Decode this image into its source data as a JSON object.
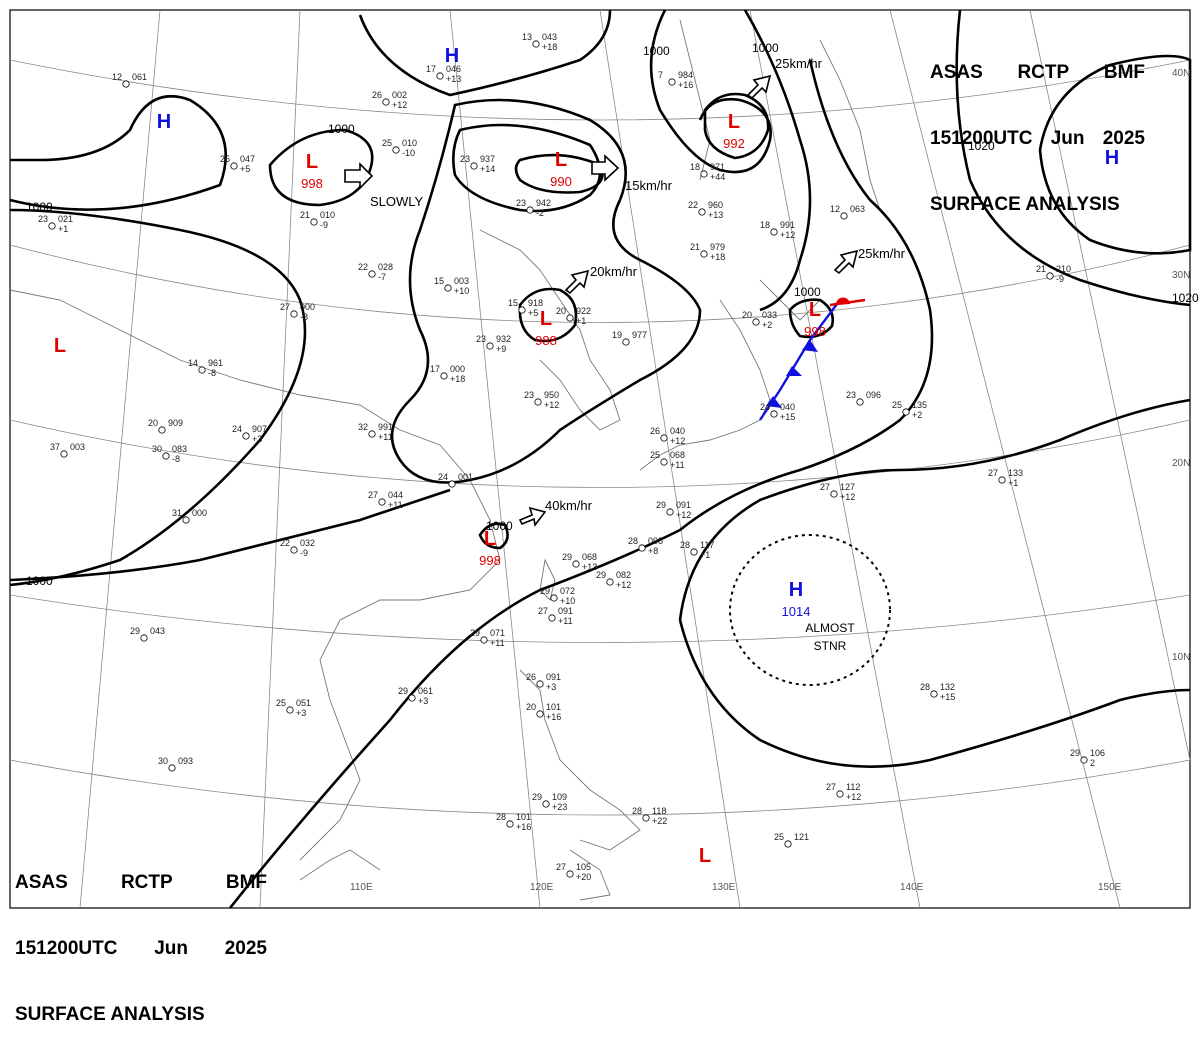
{
  "header": {
    "line1": [
      "ASAS",
      "RCTP",
      "BMF"
    ],
    "line2": [
      "151200UTC",
      "Jun",
      "2025"
    ],
    "line3": "SURFACE ANALYSIS"
  },
  "colors": {
    "high": "#1010e0",
    "low": "#e00000",
    "isobar": "#000000",
    "land": "#888888",
    "grid": "#888888"
  },
  "lon_labels": [
    {
      "text": "110E"
    },
    {
      "text": "120E"
    },
    {
      "text": "130E"
    },
    {
      "text": "140E"
    },
    {
      "text": "150E"
    }
  ],
  "lat_labels": [
    {
      "text": "40N"
    },
    {
      "text": "30N"
    },
    {
      "text": "20N"
    },
    {
      "text": "10N"
    }
  ],
  "isobar_labels": [
    {
      "text": "1000"
    },
    {
      "text": "1000"
    },
    {
      "text": "1000"
    },
    {
      "text": "1000"
    },
    {
      "text": "1000"
    },
    {
      "text": "1000"
    },
    {
      "text": "1000"
    },
    {
      "text": "1020"
    },
    {
      "text": "1020"
    }
  ],
  "pressure_centers": [
    {
      "type": "H",
      "value": ""
    },
    {
      "type": "H",
      "value": ""
    },
    {
      "type": "H",
      "value": ""
    },
    {
      "type": "H",
      "value": "1014"
    },
    {
      "type": "L",
      "value": "998"
    },
    {
      "type": "L",
      "value": "990"
    },
    {
      "type": "L",
      "value": "992"
    },
    {
      "type": "L",
      "value": "988"
    },
    {
      "type": "L",
      "value": "998"
    },
    {
      "type": "L",
      "value": "998"
    },
    {
      "type": "L",
      "value": ""
    },
    {
      "type": "L",
      "value": ""
    }
  ],
  "motions": [
    {
      "text": "SLOWLY"
    },
    {
      "text": "15km/hr"
    },
    {
      "text": "25km/hr"
    },
    {
      "text": "20km/hr"
    },
    {
      "text": "25km/hr"
    },
    {
      "text": "40km/hr"
    }
  ],
  "annotations": [
    {
      "text": "ALMOST"
    },
    {
      "text": "STNR"
    }
  ],
  "stations": [
    {
      "t": "26",
      "p": "002",
      "d": "+12"
    },
    {
      "t": "25",
      "p": "010",
      "d": "-10"
    },
    {
      "t": "23",
      "p": "937",
      "d": "+14"
    },
    {
      "t": "23",
      "p": "942",
      "d": "-2"
    },
    {
      "t": "18",
      "p": "971",
      "d": "+44"
    },
    {
      "t": "22",
      "p": "960",
      "d": "+13"
    },
    {
      "t": "21",
      "p": "979",
      "d": "+18"
    },
    {
      "t": "22",
      "p": "028",
      "d": "-7"
    },
    {
      "t": "15",
      "p": "003",
      "d": "+10"
    },
    {
      "t": "15",
      "p": "918",
      "d": "+5"
    },
    {
      "t": "20",
      "p": "922",
      "d": "+1"
    },
    {
      "t": "23",
      "p": "932",
      "d": "+9"
    },
    {
      "t": "19",
      "p": "977",
      "d": ""
    },
    {
      "t": "17",
      "p": "000",
      "d": "+18"
    },
    {
      "t": "23",
      "p": "950",
      "d": "+12"
    },
    {
      "t": "14",
      "p": "961",
      "d": "-8"
    },
    {
      "t": "20",
      "p": "909",
      "d": ""
    },
    {
      "t": "24",
      "p": "907",
      "d": "+3"
    },
    {
      "t": "32",
      "p": "991",
      "d": "+11"
    },
    {
      "t": "24",
      "p": "001",
      "d": ""
    },
    {
      "t": "27",
      "p": "044",
      "d": "+11"
    },
    {
      "t": "31",
      "p": "000",
      "d": ""
    },
    {
      "t": "22",
      "p": "032",
      "d": "-9"
    },
    {
      "t": "29",
      "p": "043",
      "d": ""
    },
    {
      "t": "29",
      "p": "068",
      "d": "+13"
    },
    {
      "t": "29",
      "p": "072",
      "d": "+10"
    },
    {
      "t": "27",
      "p": "091",
      "d": "+11"
    },
    {
      "t": "29",
      "p": "071",
      "d": "+11"
    },
    {
      "t": "29",
      "p": "061",
      "d": "+3"
    },
    {
      "t": "25",
      "p": "051",
      "d": "+3"
    },
    {
      "t": "29",
      "p": "091",
      "d": "+12"
    },
    {
      "t": "28",
      "p": "098",
      "d": "+8"
    },
    {
      "t": "28",
      "p": "117",
      "d": "+1"
    },
    {
      "t": "29",
      "p": "082",
      "d": "+12"
    },
    {
      "t": "26",
      "p": "091",
      "d": "+3"
    },
    {
      "t": "20",
      "p": "101",
      "d": "+16"
    },
    {
      "t": "29",
      "p": "109",
      "d": "+23"
    },
    {
      "t": "28",
      "p": "101",
      "d": "+16"
    },
    {
      "t": "27",
      "p": "105",
      "d": "+20"
    },
    {
      "t": "28",
      "p": "118",
      "d": "+22"
    },
    {
      "t": "27",
      "p": "112",
      "d": "+12"
    },
    {
      "t": "25",
      "p": "121",
      "d": ""
    },
    {
      "t": "28",
      "p": "132",
      "d": "+15"
    },
    {
      "t": "29",
      "p": "106",
      "d": "2"
    },
    {
      "t": "27",
      "p": "133",
      "d": "+1"
    },
    {
      "t": "27",
      "p": "127",
      "d": "+12"
    },
    {
      "t": "25",
      "p": "135",
      "d": "+2"
    },
    {
      "t": "23",
      "p": "096",
      "d": ""
    },
    {
      "t": "24",
      "p": "040",
      "d": "+15"
    },
    {
      "t": "20",
      "p": "033",
      "d": "+2"
    },
    {
      "t": "13",
      "p": "043",
      "d": "+18"
    },
    {
      "t": "17",
      "p": "046",
      "d": "+13"
    },
    {
      "t": "7",
      "p": "984",
      "d": "+16"
    },
    {
      "t": "25",
      "p": "047",
      "d": "+5"
    },
    {
      "t": "12",
      "p": "061",
      "d": ""
    },
    {
      "t": "21",
      "p": "010",
      "d": "-9"
    },
    {
      "t": "23",
      "p": "021",
      "d": "+1"
    },
    {
      "t": "27",
      "p": "000",
      "d": "-8"
    },
    {
      "t": "30",
      "p": "083",
      "d": "-8"
    },
    {
      "t": "30",
      "p": "093",
      "d": ""
    },
    {
      "t": "12",
      "p": "063",
      "d": ""
    },
    {
      "t": "18",
      "p": "991",
      "d": "+12"
    },
    {
      "t": "37",
      "p": "003",
      "d": ""
    },
    {
      "t": "26",
      "p": "040",
      "d": "+12"
    },
    {
      "t": "25",
      "p": "068",
      "d": "+11"
    },
    {
      "t": "21",
      "p": "210",
      "d": "-9"
    }
  ]
}
